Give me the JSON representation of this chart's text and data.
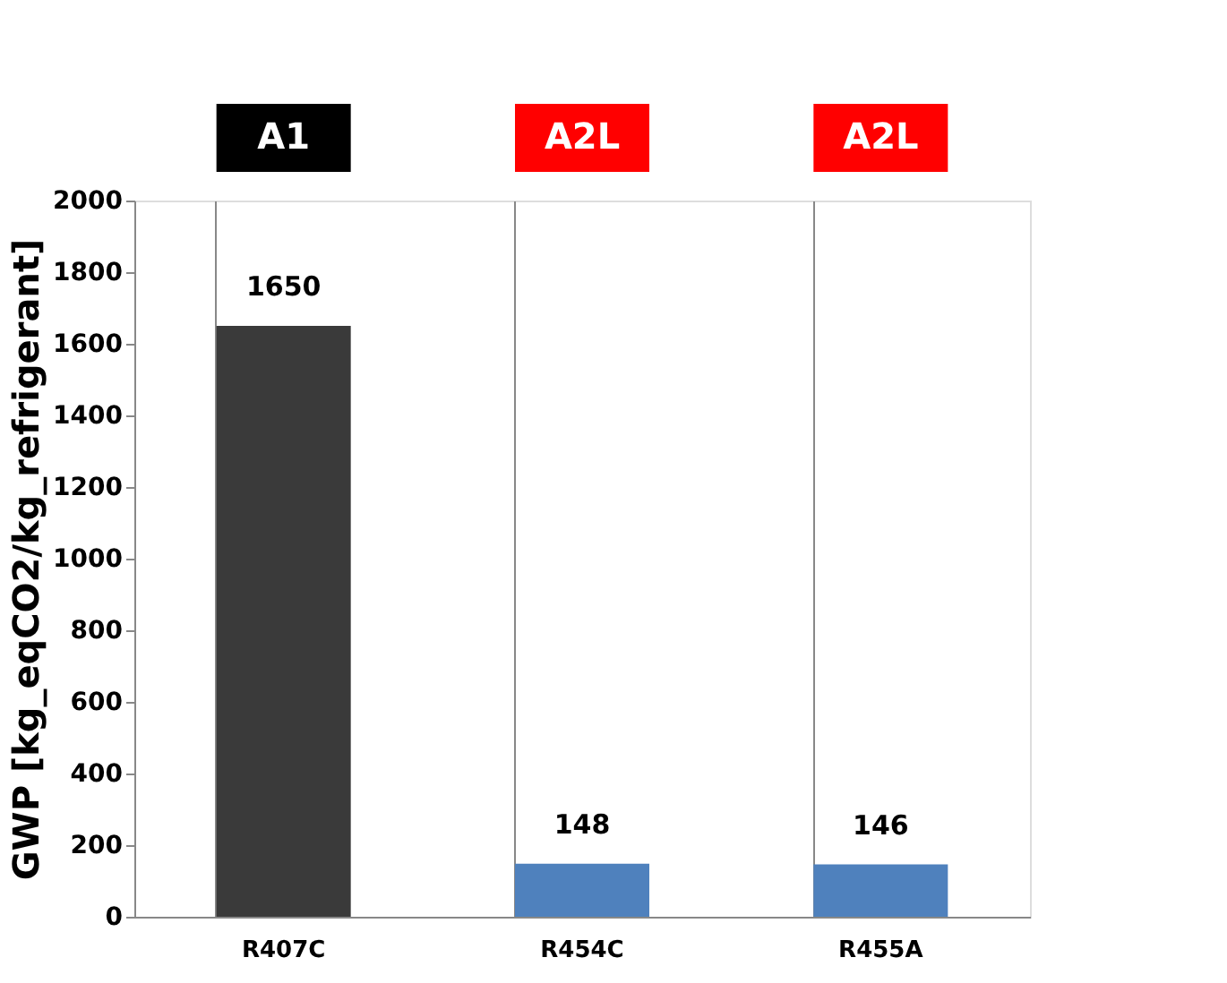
{
  "chart_data": {
    "type": "bar",
    "ylabel": "GWP [kg_eqCO2/kg_refrigerant]",
    "categories": [
      "R407C",
      "R454C",
      "R455A"
    ],
    "series": [
      {
        "colors": [
          "#3a3a3a",
          "#4f81bd",
          "#4f81bd"
        ],
        "values": [
          1650,
          148,
          146
        ]
      }
    ],
    "ylim": [
      0,
      2000
    ],
    "yticks": [
      0,
      200,
      400,
      600,
      800,
      1000,
      1200,
      1400,
      1600,
      1800,
      2000
    ],
    "grid": "x",
    "data_labels": true,
    "annotations": [
      "A1",
      "A2L",
      "A2L"
    ]
  }
}
